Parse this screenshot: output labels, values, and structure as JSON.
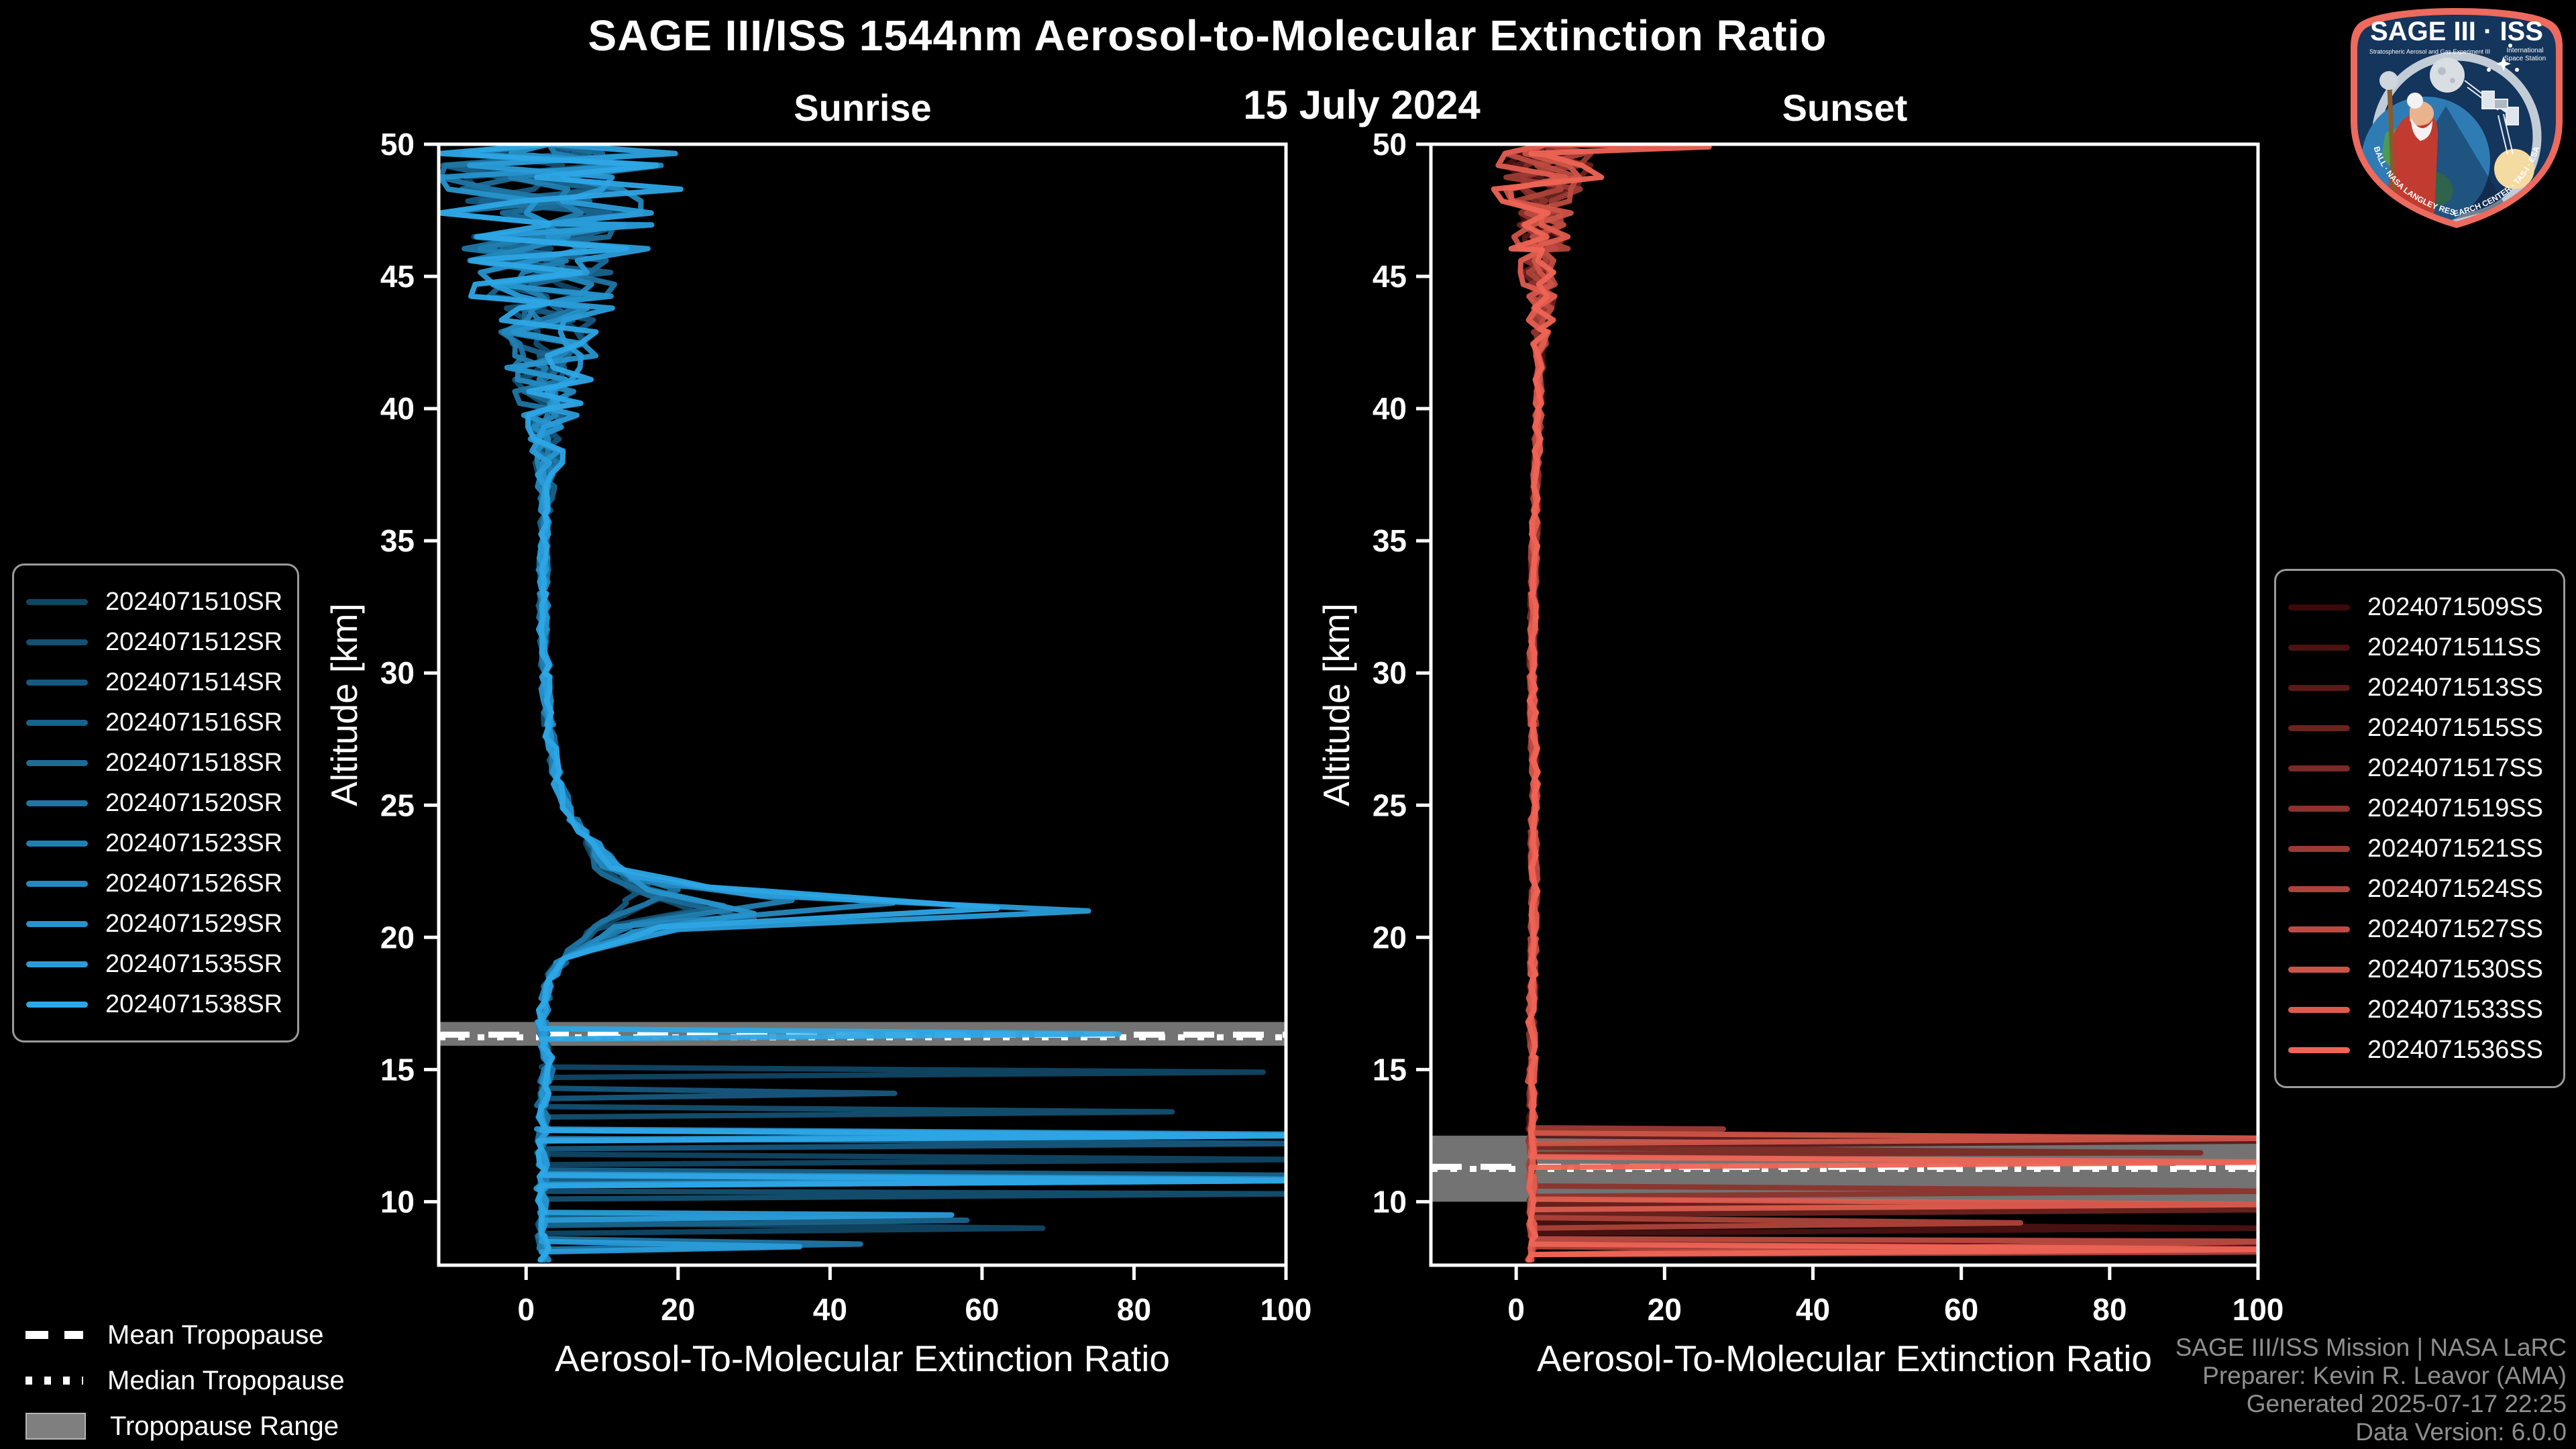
{
  "title": "SAGE III/ISS 1544nm Aerosol-to-Molecular Extinction Ratio",
  "subtitle_date": "15 July 2024",
  "logo": {
    "title": "SAGE III · ISS",
    "subtitle_left": "Stratospheric Aerosol and Gas Experiment III",
    "subtitle_right_1": "International",
    "subtitle_right_2": "Space Station",
    "border_text": "BALL · NASA LANGLEY RESEARCH CENTER · TAS-I · ESA"
  },
  "legend_notes": [
    {
      "label": "Mean Tropopause",
      "swatch": "dashed"
    },
    {
      "label": "Median Tropopause",
      "swatch": "dotted"
    },
    {
      "label": "Tropopause Range",
      "swatch": "box"
    }
  ],
  "credits": [
    "SAGE III/ISS Mission | NASA LaRC",
    "Preparer: Kevin R. Leavor (AMA)",
    "Generated 2025-07-17 22:25",
    "Data Version: 6.0.0"
  ],
  "colors": {
    "background": "#000000",
    "axis": "#ffffff",
    "tropopause_band": "#7f7f7f",
    "credit_text": "#8f8f8f"
  },
  "chart_data": [
    {
      "type": "line",
      "title": "Sunrise",
      "xlabel": "Aerosol-To-Molecular Extinction Ratio",
      "ylabel": "Altitude [km]",
      "xlim": [
        -11.5,
        100
      ],
      "ylim": [
        7.6,
        50
      ],
      "xticks": [
        0,
        20,
        40,
        60,
        80,
        100
      ],
      "yticks": [
        10,
        15,
        20,
        25,
        30,
        35,
        40,
        45,
        50
      ],
      "grid": false,
      "legend_position": "outside-left",
      "tropopause": {
        "mean_km": 16.32,
        "median_km": 16.22,
        "range_km": [
          15.9,
          16.8
        ]
      },
      "jitter": 0.7,
      "base_anchors": [
        [
          8,
          2.5
        ],
        [
          8.8,
          2
        ],
        [
          9.6,
          2.5
        ],
        [
          10.4,
          2
        ],
        [
          11.2,
          2.5
        ],
        [
          12,
          2
        ],
        [
          12.8,
          2.5
        ],
        [
          13.6,
          2
        ],
        [
          14.4,
          2.5
        ],
        [
          15.2,
          3
        ],
        [
          16,
          2.5
        ],
        [
          16.8,
          2
        ],
        [
          17.6,
          2.5
        ],
        [
          18.4,
          3
        ],
        [
          19.2,
          5
        ],
        [
          23.8,
          8
        ],
        [
          24.5,
          6
        ],
        [
          26,
          4
        ],
        [
          28,
          3
        ],
        [
          30,
          2.5
        ],
        [
          33,
          2.2
        ],
        [
          36,
          2.5
        ],
        [
          40,
          3
        ],
        [
          44,
          3
        ],
        [
          47,
          3
        ],
        [
          50,
          3
        ]
      ],
      "series": [
        {
          "name": "2024071510SR",
          "color": "#104664",
          "seed": 11,
          "noise_start": 36,
          "noise_amp": 14,
          "anchors": [
            [
              15.1,
              2
            ],
            [
              14.9,
              97
            ],
            [
              14.7,
              2
            ],
            [
              11.8,
              2
            ],
            [
              11.6,
              104
            ],
            [
              11.4,
              2
            ],
            [
              9.2,
              2
            ],
            [
              9,
              68
            ],
            [
              8.8,
              2
            ],
            [
              20.2,
              8
            ],
            [
              21,
              14
            ],
            [
              21.5,
              18
            ],
            [
              22.2,
              12
            ],
            [
              23,
              9
            ]
          ]
        },
        {
          "name": "2024071512SR",
          "color": "#135071",
          "seed": 22,
          "noise_start": 36,
          "noise_amp": 16,
          "anchors": [
            [
              13.6,
              2
            ],
            [
              13.4,
              85
            ],
            [
              13.2,
              2
            ],
            [
              10.5,
              2
            ],
            [
              10.3,
              104
            ],
            [
              10.1,
              2
            ],
            [
              20.3,
              9
            ],
            [
              21,
              22
            ],
            [
              21.7,
              15
            ],
            [
              22.6,
              10
            ]
          ]
        },
        {
          "name": "2024071514SR",
          "color": "#16597e",
          "seed": 33,
          "noise_start": 36,
          "noise_amp": 13,
          "anchors": [
            [
              14.3,
              2
            ],
            [
              14.1,
              48
            ],
            [
              13.9,
              2
            ],
            [
              12.4,
              2
            ],
            [
              12.2,
              104
            ],
            [
              12,
              2
            ],
            [
              20.5,
              10
            ],
            [
              21.4,
              13
            ],
            [
              22,
              16
            ],
            [
              22.8,
              11
            ]
          ]
        },
        {
          "name": "2024071516SR",
          "color": "#19638b",
          "seed": 44,
          "noise_start": 36,
          "noise_amp": 18,
          "anchors": [
            [
              11.2,
              2
            ],
            [
              11,
              104
            ],
            [
              10.8,
              2
            ],
            [
              9.5,
              2
            ],
            [
              9.3,
              58
            ],
            [
              9.1,
              2
            ],
            [
              20.4,
              12
            ],
            [
              21.2,
              26
            ],
            [
              22,
              14
            ]
          ]
        },
        {
          "name": "2024071518SR",
          "color": "#1c6c98",
          "seed": 55,
          "noise_start": 36,
          "noise_amp": 14,
          "anchors": [
            [
              13,
              2
            ],
            [
              12.8,
              68
            ],
            [
              12.6,
              2
            ],
            [
              20,
              12
            ],
            [
              20.7,
              30
            ],
            [
              21.6,
              16
            ],
            [
              22.4,
              10
            ]
          ]
        },
        {
          "name": "2024071520SR",
          "color": "#1f76a5",
          "seed": 66,
          "noise_start": 36,
          "noise_amp": 19,
          "anchors": [
            [
              11,
              2
            ],
            [
              10.8,
              104
            ],
            [
              10.6,
              2
            ],
            [
              8.6,
              2
            ],
            [
              8.4,
              44
            ],
            [
              8.2,
              2
            ],
            [
              20.6,
              10
            ],
            [
              21.3,
              16
            ],
            [
              21.8,
              20
            ],
            [
              22.5,
              12
            ]
          ]
        },
        {
          "name": "2024071523SR",
          "color": "#2180b2",
          "seed": 77,
          "noise_start": 36,
          "noise_amp": 15,
          "anchors": [
            [
              12.7,
              2
            ],
            [
              12.5,
              104
            ],
            [
              12.3,
              2
            ],
            [
              9.8,
              2
            ],
            [
              9.6,
              52
            ],
            [
              9.4,
              2
            ],
            [
              20.5,
              14
            ],
            [
              21.4,
              35
            ],
            [
              22.2,
              14
            ]
          ]
        },
        {
          "name": "2024071526SR",
          "color": "#2489bf",
          "seed": 88,
          "noise_start": 36,
          "noise_amp": 17,
          "anchors": [
            [
              11.4,
              2
            ],
            [
              11.2,
              80
            ],
            [
              11,
              2
            ],
            [
              20.4,
              12
            ],
            [
              21.3,
              48
            ],
            [
              22,
              18
            ],
            [
              22.7,
              10
            ]
          ]
        },
        {
          "name": "2024071529SR",
          "color": "#2793cc",
          "seed": 99,
          "noise_start": 36,
          "noise_amp": 18,
          "anchors": [
            [
              12.75,
              2
            ],
            [
              12.55,
              104
            ],
            [
              12.35,
              2
            ],
            [
              11.05,
              2
            ],
            [
              10.85,
              104
            ],
            [
              10.65,
              2
            ],
            [
              20.2,
              14
            ],
            [
              20.9,
              30
            ],
            [
              21.8,
              16
            ]
          ]
        },
        {
          "name": "2024071535SR",
          "color": "#2a9cd9",
          "seed": 110,
          "noise_start": 36,
          "noise_amp": 20,
          "anchors": [
            [
              9.7,
              2
            ],
            [
              9.5,
              56
            ],
            [
              9.3,
              2
            ],
            [
              8.5,
              2
            ],
            [
              8.3,
              36
            ],
            [
              8.1,
              2
            ],
            [
              20.3,
              20
            ],
            [
              21,
              74
            ],
            [
              21.6,
              30
            ],
            [
              22.3,
              14
            ]
          ]
        },
        {
          "name": "2024071538SR",
          "color": "#2da6e6",
          "seed": 121,
          "noise_start": 36,
          "noise_amp": 22,
          "anchors": [
            [
              16.55,
              2
            ],
            [
              16.35,
              78
            ],
            [
              16.15,
              2
            ],
            [
              12.7,
              2
            ],
            [
              12.5,
              104
            ],
            [
              12.3,
              2
            ],
            [
              11,
              2
            ],
            [
              10.8,
              104
            ],
            [
              10.6,
              2
            ],
            [
              20.4,
              18
            ],
            [
              21.1,
              62
            ],
            [
              21.9,
              24
            ],
            [
              22.6,
              12
            ]
          ]
        }
      ]
    },
    {
      "type": "line",
      "title": "Sunset",
      "xlabel": "Aerosol-To-Molecular Extinction Ratio",
      "ylabel": "Altitude [km]",
      "xlim": [
        -11.5,
        100
      ],
      "ylim": [
        7.6,
        50
      ],
      "xticks": [
        0,
        20,
        40,
        60,
        80,
        100
      ],
      "yticks": [
        10,
        15,
        20,
        25,
        30,
        35,
        40,
        45,
        50
      ],
      "grid": false,
      "legend_position": "outside-right",
      "tropopause": {
        "mean_km": 11.32,
        "median_km": 11.24,
        "range_km": [
          10.0,
          12.5
        ]
      },
      "jitter": 0.5,
      "base_anchors": [
        [
          8,
          2
        ],
        [
          8.6,
          2.2
        ],
        [
          9.4,
          2
        ],
        [
          10.2,
          2.2
        ],
        [
          11,
          2
        ],
        [
          11.8,
          2.2
        ],
        [
          12.6,
          2
        ],
        [
          13.5,
          2.2
        ],
        [
          14.5,
          2
        ],
        [
          15.5,
          2.2
        ],
        [
          17,
          2
        ],
        [
          18.5,
          2.3
        ],
        [
          20,
          2.3
        ],
        [
          22,
          2.5
        ],
        [
          24,
          2.3
        ],
        [
          26,
          2.5
        ],
        [
          28,
          2.3
        ],
        [
          30,
          2.2
        ],
        [
          33,
          2.3
        ],
        [
          36,
          2.5
        ],
        [
          40,
          3
        ],
        [
          43,
          3.2
        ],
        [
          46,
          3.5
        ],
        [
          50,
          4
        ]
      ],
      "series": [
        {
          "name": "2024071509SS",
          "color": "#3a0a0a",
          "seed": 5,
          "noise_start": 41,
          "noise_amp": 5,
          "anchors": [
            [
              8.7,
              2
            ],
            [
              8.5,
              104
            ],
            [
              8.3,
              2
            ]
          ]
        },
        {
          "name": "2024071511SS",
          "color": "#4a1211",
          "seed": 15,
          "noise_start": 41,
          "noise_amp": 6,
          "anchors": [
            [
              9.2,
              2
            ],
            [
              9,
              104
            ],
            [
              8.8,
              2
            ],
            [
              8.4,
              2
            ],
            [
              8.2,
              60
            ]
          ]
        },
        {
          "name": "2024071513SS",
          "color": "#5b1a18",
          "seed": 25,
          "noise_start": 41,
          "noise_amp": 5,
          "anchors": [
            [
              12.5,
              2
            ],
            [
              12.3,
              104
            ],
            [
              12.1,
              2
            ],
            [
              8.5,
              2
            ],
            [
              8.3,
              104
            ]
          ]
        },
        {
          "name": "2024071515SS",
          "color": "#6b231e",
          "seed": 35,
          "noise_start": 41,
          "noise_amp": 7,
          "anchors": [
            [
              9.9,
              2
            ],
            [
              9.7,
              104
            ],
            [
              9.5,
              2
            ]
          ]
        },
        {
          "name": "2024071517SS",
          "color": "#7b2b25",
          "seed": 45,
          "noise_start": 41,
          "noise_amp": 6,
          "anchors": [
            [
              12.05,
              2
            ],
            [
              11.85,
              92
            ],
            [
              11.65,
              2
            ]
          ]
        },
        {
          "name": "2024071519SS",
          "color": "#8c332c",
          "seed": 56,
          "noise_start": 41,
          "noise_amp": 5,
          "anchors": [
            [
              10.6,
              2
            ],
            [
              10.4,
              104
            ],
            [
              10.2,
              2
            ]
          ]
        },
        {
          "name": "2024071521SS",
          "color": "#9c3b33",
          "seed": 65,
          "noise_start": 41,
          "noise_amp": 6,
          "anchors": [
            [
              12.8,
              2
            ],
            [
              12.6,
              104
            ],
            [
              12.4,
              2
            ]
          ]
        },
        {
          "name": "2024071524SS",
          "color": "#ad433a",
          "seed": 75,
          "noise_start": 41,
          "noise_amp": 7,
          "anchors": [
            [
              9.4,
              2
            ],
            [
              9.2,
              68
            ],
            [
              9,
              2
            ],
            [
              8.3,
              2
            ],
            [
              8.1,
              104
            ]
          ]
        },
        {
          "name": "2024071527SS",
          "color": "#bd4b41",
          "seed": 85,
          "noise_start": 41,
          "noise_amp": 6,
          "anchors": [
            [
              11.2,
              2
            ],
            [
              11,
              58
            ],
            [
              10.8,
              2
            ],
            [
              8.7,
              2
            ],
            [
              8.5,
              104
            ]
          ]
        },
        {
          "name": "2024071530SS",
          "color": "#cd5447",
          "seed": 95,
          "noise_start": 41,
          "noise_amp": 8,
          "anchors": [
            [
              12.6,
              2
            ],
            [
              12.4,
              104
            ],
            [
              12.2,
              2
            ],
            [
              10.4,
              2
            ],
            [
              10.2,
              104
            ],
            [
              10,
              2
            ]
          ]
        },
        {
          "name": "2024071533SS",
          "color": "#de5c4e",
          "seed": 105,
          "noise_start": 41,
          "noise_amp": 7,
          "anchors": [
            [
              10.1,
              2
            ],
            [
              9.9,
              104
            ],
            [
              9.7,
              2
            ]
          ]
        },
        {
          "name": "2024071536SS",
          "color": "#ee6455",
          "seed": 115,
          "noise_start": 41,
          "noise_amp": 9,
          "anchors": [
            [
              11.7,
              2
            ],
            [
              11.5,
              104
            ],
            [
              11.3,
              2
            ],
            [
              8.4,
              2
            ],
            [
              8.2,
              104
            ],
            [
              49.6,
              4
            ],
            [
              49.9,
              26
            ]
          ]
        }
      ]
    }
  ]
}
